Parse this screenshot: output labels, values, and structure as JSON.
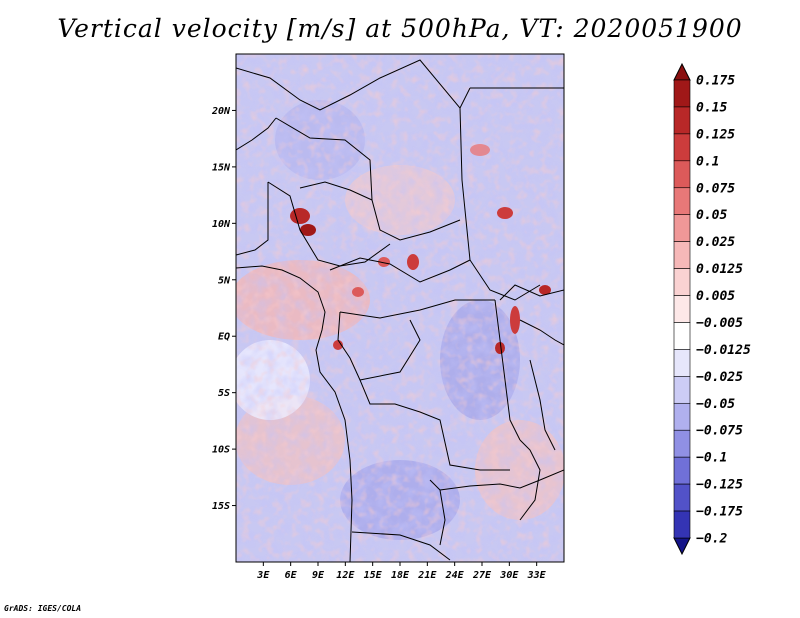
{
  "title": "Vertical velocity [m/s] at 500hPa, VT: 2020051900",
  "credit": "GrADS: IGES/COLA",
  "map": {
    "lon_range": [
      0,
      36
    ],
    "lat_range": [
      -20,
      25
    ],
    "lat_ticks": [
      {
        "value": 20,
        "label": "20N"
      },
      {
        "value": 15,
        "label": "15N"
      },
      {
        "value": 10,
        "label": "10N"
      },
      {
        "value": 5,
        "label": "5N"
      },
      {
        "value": 0,
        "label": "EQ"
      },
      {
        "value": -5,
        "label": "5S"
      },
      {
        "value": -10,
        "label": "10S"
      },
      {
        "value": -15,
        "label": "15S"
      }
    ],
    "lon_ticks": [
      {
        "value": 3,
        "label": "3E"
      },
      {
        "value": 6,
        "label": "6E"
      },
      {
        "value": 9,
        "label": "9E"
      },
      {
        "value": 12,
        "label": "12E"
      },
      {
        "value": 15,
        "label": "15E"
      },
      {
        "value": 18,
        "label": "18E"
      },
      {
        "value": 21,
        "label": "21E"
      },
      {
        "value": 24,
        "label": "24E"
      },
      {
        "value": 27,
        "label": "27E"
      },
      {
        "value": 30,
        "label": "30E"
      },
      {
        "value": 33,
        "label": "33E"
      }
    ]
  },
  "colorbar": {
    "levels": [
      {
        "label": "0.175",
        "color": "#a01818"
      },
      {
        "label": "0.15",
        "color": "#b82828"
      },
      {
        "label": "0.125",
        "color": "#cc3c3c"
      },
      {
        "label": "0.1",
        "color": "#dc5a5a"
      },
      {
        "label": "0.075",
        "color": "#e87878"
      },
      {
        "label": "0.05",
        "color": "#f09898"
      },
      {
        "label": "0.025",
        "color": "#f6b8b8"
      },
      {
        "label": "0.0125",
        "color": "#fad2d2"
      },
      {
        "label": "0.005",
        "color": "#fde8e8"
      },
      {
        "label": "−0.005",
        "color": "#ffffff"
      },
      {
        "label": "−0.0125",
        "color": "#e6e6fb"
      },
      {
        "label": "−0.025",
        "color": "#ccccf5"
      },
      {
        "label": "−0.05",
        "color": "#b0b0ee"
      },
      {
        "label": "−0.075",
        "color": "#9090e4"
      },
      {
        "label": "−0.1",
        "color": "#7070d8"
      },
      {
        "label": "−0.125",
        "color": "#5252c8"
      },
      {
        "label": "−0.175",
        "color": "#3434b4"
      },
      {
        "label": "−0.2",
        "color": "#1c1ca0"
      }
    ],
    "top_arrow_color": "#8a1010",
    "bottom_arrow_color": "#141488"
  }
}
